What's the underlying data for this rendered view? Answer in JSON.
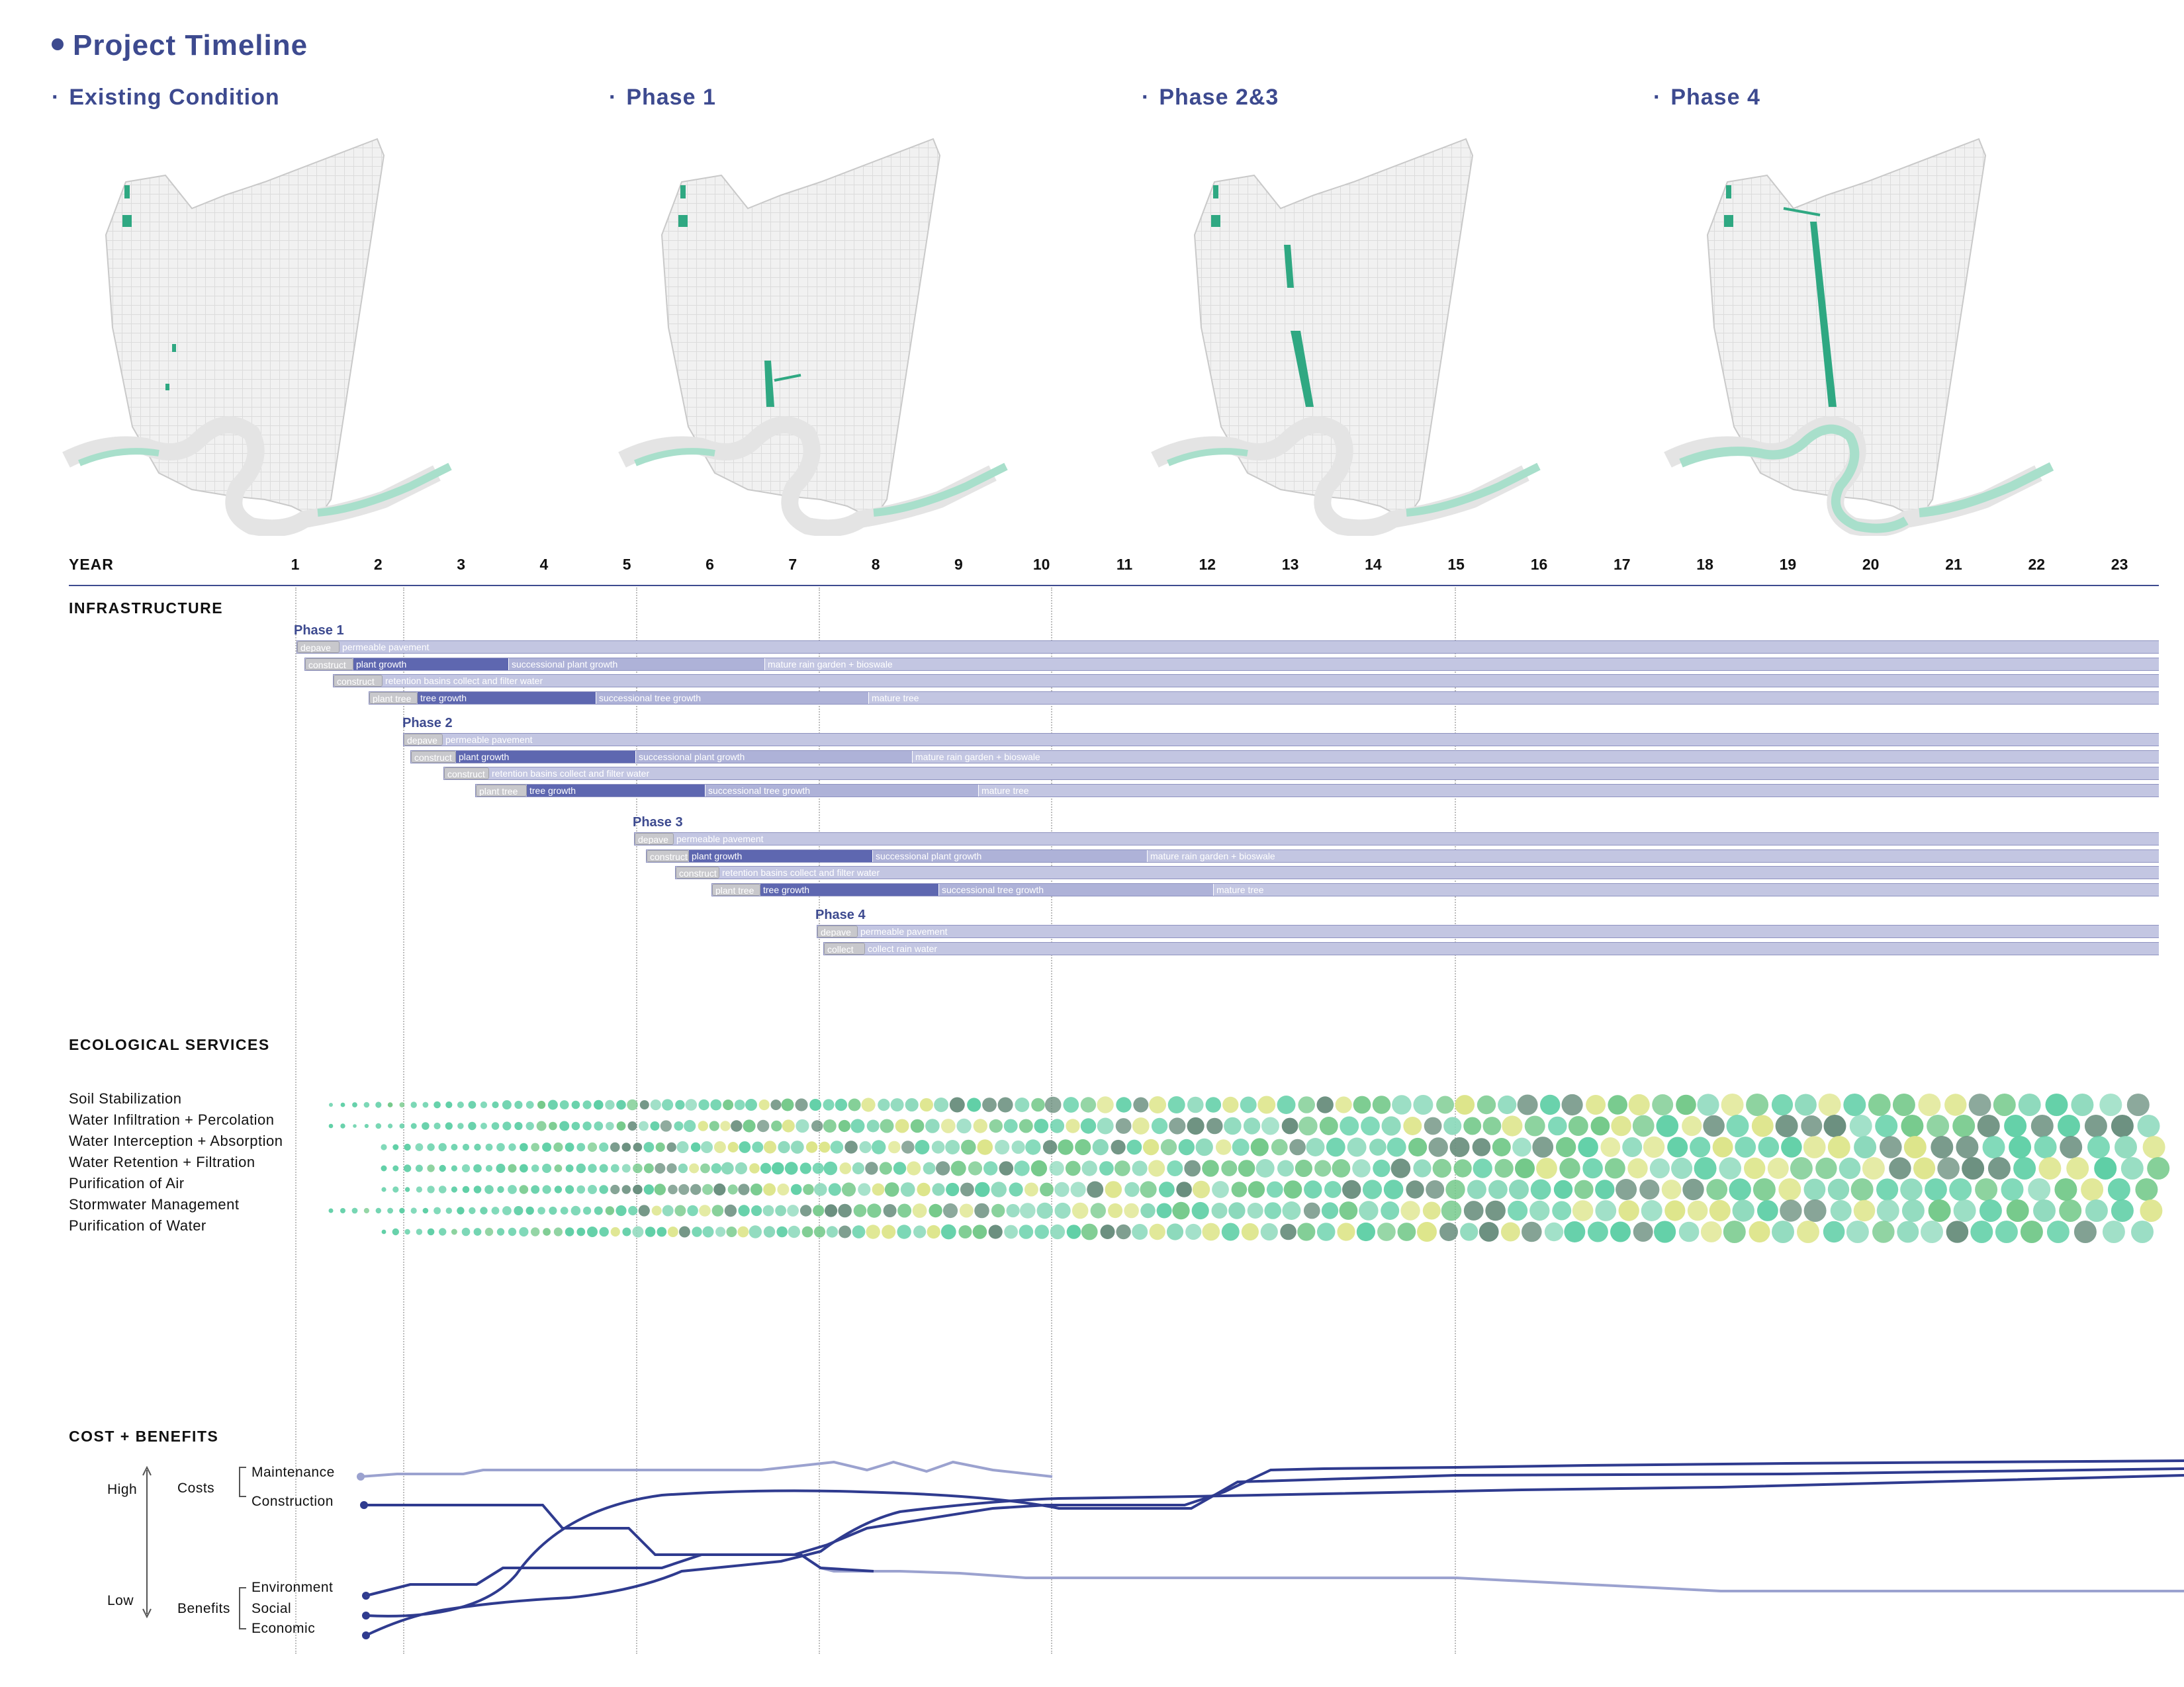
{
  "title": "Project Timeline",
  "phases_header": [
    {
      "prefix": "·",
      "label": "Existing Condition"
    },
    {
      "prefix": "·",
      "label": "Phase 1"
    },
    {
      "prefix": "·",
      "label": "Phase 2&3"
    },
    {
      "prefix": "·",
      "label": "Phase 4"
    }
  ],
  "timeline": {
    "year_label": "YEAR",
    "years": [
      "1",
      "2",
      "3",
      "4",
      "5",
      "6",
      "7",
      "8",
      "9",
      "10",
      "11",
      "12",
      "13",
      "14",
      "15",
      "16",
      "17",
      "18",
      "19",
      "20",
      "21",
      "22",
      "23"
    ]
  },
  "infrastructure": {
    "label": "INFRASTRUCTURE",
    "phases": [
      {
        "name": "Phase 1",
        "rows": [
          {
            "segments": [
              {
                "text": "depave",
                "style": "gray"
              },
              {
                "text": "permeable pavement",
                "style": "pale"
              }
            ]
          },
          {
            "segments": [
              {
                "text": "construct",
                "style": "gray"
              },
              {
                "text": "plant growth",
                "style": "dark"
              },
              {
                "text": "successional plant growth",
                "style": "light"
              },
              {
                "text": "mature rain garden + bioswale",
                "style": "pale"
              }
            ]
          },
          {
            "segments": [
              {
                "text": "construct",
                "style": "gray"
              },
              {
                "text": "retention basins collect and filter water",
                "style": "pale"
              }
            ]
          },
          {
            "segments": [
              {
                "text": "plant tree",
                "style": "gray"
              },
              {
                "text": "tree growth",
                "style": "dark"
              },
              {
                "text": "successional tree growth",
                "style": "light"
              },
              {
                "text": "mature tree",
                "style": "pale"
              }
            ]
          }
        ]
      },
      {
        "name": "Phase 2",
        "rows": [
          {
            "segments": [
              {
                "text": "depave",
                "style": "gray"
              },
              {
                "text": "permeable pavement",
                "style": "pale"
              }
            ]
          },
          {
            "segments": [
              {
                "text": "construct",
                "style": "gray"
              },
              {
                "text": "plant growth",
                "style": "dark"
              },
              {
                "text": "successional plant growth",
                "style": "light"
              },
              {
                "text": "mature rain garden + bioswale",
                "style": "pale"
              }
            ]
          },
          {
            "segments": [
              {
                "text": "construct",
                "style": "gray"
              },
              {
                "text": "retention basins collect and filter water",
                "style": "pale"
              }
            ]
          },
          {
            "segments": [
              {
                "text": "plant tree",
                "style": "gray"
              },
              {
                "text": "tree growth",
                "style": "dark"
              },
              {
                "text": "successional tree growth",
                "style": "light"
              },
              {
                "text": "mature tree",
                "style": "pale"
              }
            ]
          }
        ]
      },
      {
        "name": "Phase 3",
        "rows": [
          {
            "segments": [
              {
                "text": "depave",
                "style": "gray"
              },
              {
                "text": "permeable pavement",
                "style": "pale"
              }
            ]
          },
          {
            "segments": [
              {
                "text": "construct",
                "style": "gray"
              },
              {
                "text": "plant growth",
                "style": "dark"
              },
              {
                "text": "successional plant growth",
                "style": "light"
              },
              {
                "text": "mature rain garden + bioswale",
                "style": "pale"
              }
            ]
          },
          {
            "segments": [
              {
                "text": "construct",
                "style": "gray"
              },
              {
                "text": "retention basins collect and filter water",
                "style": "pale"
              }
            ]
          },
          {
            "segments": [
              {
                "text": "plant tree",
                "style": "gray"
              },
              {
                "text": "tree growth",
                "style": "dark"
              },
              {
                "text": "successional tree growth",
                "style": "light"
              },
              {
                "text": "mature tree",
                "style": "pale"
              }
            ]
          }
        ]
      },
      {
        "name": "Phase 4",
        "rows": [
          {
            "segments": [
              {
                "text": "depave",
                "style": "gray"
              },
              {
                "text": "permeable pavement",
                "style": "pale"
              }
            ]
          },
          {
            "segments": [
              {
                "text": "collect",
                "style": "gray"
              },
              {
                "text": "collect rain water",
                "style": "pale"
              }
            ]
          }
        ]
      }
    ]
  },
  "ecological": {
    "label": "ECOLOGICAL SERVICES",
    "services": [
      "Soil Stabilization",
      "Water Infiltration + Percolation",
      "Water Interception + Absorption",
      "Water Retention + Filtration",
      "Purification of Air",
      "Stormwater Management",
      "Purification of Water"
    ],
    "dot_colors": [
      "#5fcfa6",
      "#74c98a",
      "#dde58a",
      "#6a8f7e",
      "#8bd9bb"
    ]
  },
  "cost_benefits": {
    "label": "COST + BENEFITS",
    "high": "High",
    "low": "Low",
    "costs": "Costs",
    "benefits": "Benefits",
    "lines": [
      "Maintenance",
      "Construction",
      "Environment",
      "Social",
      "Economic"
    ],
    "line_color": "#2f3b8f",
    "line_color_light": "#9ba2cf"
  },
  "colors": {
    "accent": "#3d4a8f",
    "map_green": "#2fa882",
    "map_river": "#a8dfcb"
  }
}
